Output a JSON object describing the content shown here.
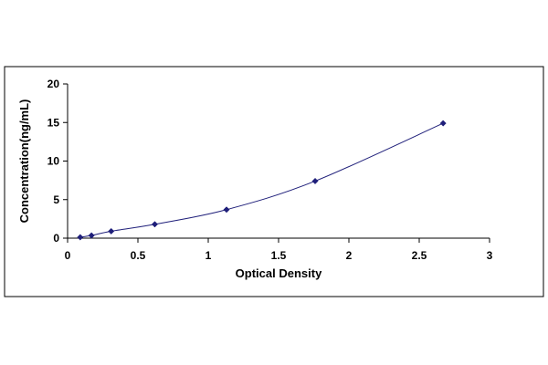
{
  "chart_data": {
    "type": "scatter",
    "title": "",
    "xlabel": "Optical Density",
    "ylabel": "Concentration(ng/mL)",
    "xlim": [
      0,
      3
    ],
    "ylim": [
      0,
      20
    ],
    "xticks": [
      0,
      0.5,
      1,
      1.5,
      2,
      2.5,
      3
    ],
    "yticks": [
      0,
      5,
      10,
      15,
      20
    ],
    "xtick_labels": [
      "0",
      "0.5",
      "1",
      "1.5",
      "2",
      "2.5",
      "3"
    ],
    "ytick_labels": [
      "0",
      "5",
      "10",
      "15",
      "20"
    ],
    "grid": false,
    "legend": "none",
    "series": [
      {
        "x": [
          0.09,
          0.17,
          0.31,
          0.62,
          1.13,
          1.76,
          2.67
        ],
        "y": [
          0.12,
          0.35,
          0.9,
          1.8,
          3.7,
          7.4,
          14.9
        ],
        "marker": "diamond",
        "line": "smooth trendline"
      }
    ],
    "colors": {
      "series": "#1f1f7a",
      "axis": "#000000",
      "frame": "#000000"
    }
  }
}
